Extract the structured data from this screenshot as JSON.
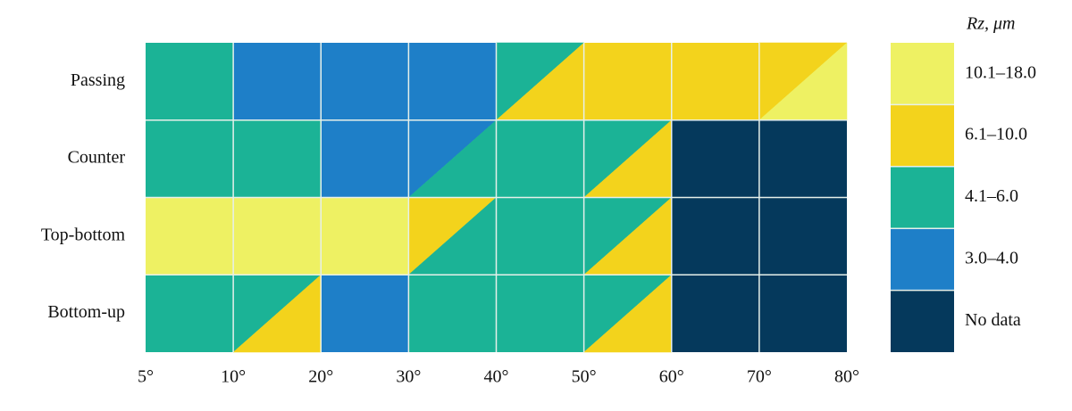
{
  "chart_data": {
    "type": "heatmap",
    "legend_title": "Rz, μm",
    "legend": [
      {
        "label": "10.1–18.0",
        "color": "#eef163"
      },
      {
        "label": "6.1–10.0",
        "color": "#f3d31c"
      },
      {
        "label": "4.1–6.0",
        "color": "#1bb396"
      },
      {
        "label": "3.0–4.0",
        "color": "#1e7fc8"
      },
      {
        "label": "No data",
        "color": "#05395c"
      }
    ],
    "column_edges": [
      "5°",
      "10°",
      "20°",
      "30°",
      "40°",
      "50°",
      "60°",
      "70°",
      "80°"
    ],
    "rows": [
      {
        "name": "Passing",
        "cells": [
          [
            "4.1–6.0"
          ],
          [
            "3.0–4.0"
          ],
          [
            "3.0–4.0"
          ],
          [
            "3.0–4.0"
          ],
          [
            "4.1–6.0",
            "6.1–10.0"
          ],
          [
            "6.1–10.0"
          ],
          [
            "6.1–10.0"
          ],
          [
            "6.1–10.0",
            "10.1–18.0"
          ]
        ]
      },
      {
        "name": "Counter",
        "cells": [
          [
            "4.1–6.0"
          ],
          [
            "4.1–6.0"
          ],
          [
            "3.0–4.0"
          ],
          [
            "3.0–4.0",
            "4.1–6.0"
          ],
          [
            "4.1–6.0"
          ],
          [
            "4.1–6.0",
            "6.1–10.0"
          ],
          [
            "No data"
          ],
          [
            "No data"
          ]
        ]
      },
      {
        "name": "Top-bottom",
        "cells": [
          [
            "10.1–18.0"
          ],
          [
            "10.1–18.0"
          ],
          [
            "10.1–18.0"
          ],
          [
            "6.1–10.0",
            "4.1–6.0"
          ],
          [
            "4.1–6.0"
          ],
          [
            "4.1–6.0",
            "6.1–10.0"
          ],
          [
            "No data"
          ],
          [
            "No data"
          ]
        ]
      },
      {
        "name": "Bottom-up",
        "cells": [
          [
            "4.1–6.0"
          ],
          [
            "4.1–6.0",
            "6.1–10.0"
          ],
          [
            "3.0–4.0"
          ],
          [
            "4.1–6.0"
          ],
          [
            "4.1–6.0"
          ],
          [
            "4.1–6.0",
            "6.1–10.0"
          ],
          [
            "No data"
          ],
          [
            "No data"
          ]
        ]
      }
    ]
  }
}
